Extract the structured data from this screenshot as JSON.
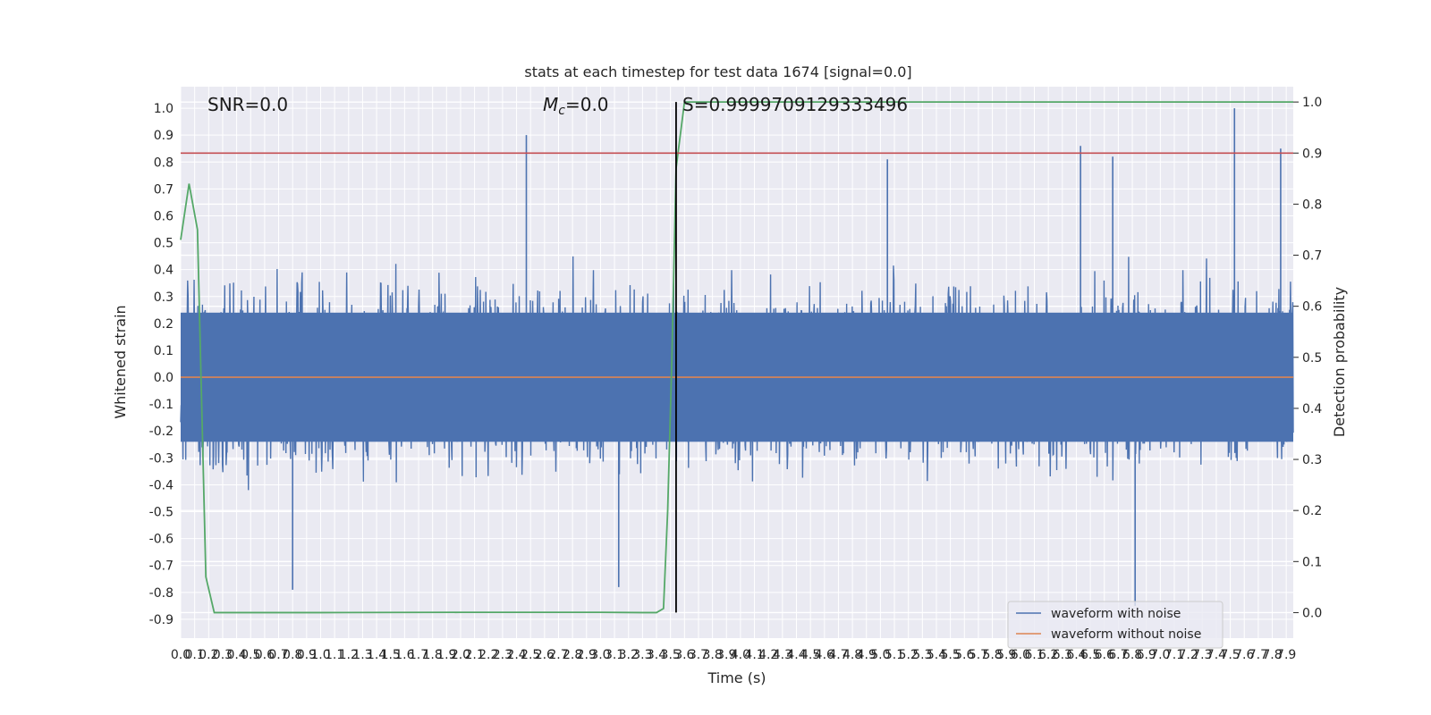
{
  "chart_data": {
    "type": "line",
    "title": "stats at each timestep for test data 1674 [signal=0.0]",
    "xlabel": "Time (s)",
    "ylabel_left": "Whitened strain",
    "ylabel_right": "Detection probability",
    "xlim": [
      0.0,
      7.95
    ],
    "ylim_left": [
      -0.97,
      1.08
    ],
    "ylim_right": [
      -0.05,
      1.03
    ],
    "x_ticks": [
      "0.0",
      "0.1",
      "0.2",
      "0.3",
      "0.4",
      "0.5",
      "0.6",
      "0.7",
      "0.8",
      "0.9",
      "1.0",
      "1.1",
      "1.2",
      "1.3",
      "1.4",
      "1.5",
      "1.6",
      "1.7",
      "1.8",
      "1.9",
      "2.0",
      "2.1",
      "2.2",
      "2.3",
      "2.4",
      "2.5",
      "2.6",
      "2.7",
      "2.8",
      "2.9",
      "3.0",
      "3.1",
      "3.2",
      "3.3",
      "3.4",
      "3.5",
      "3.6",
      "3.7",
      "3.8",
      "3.9",
      "4.0",
      "4.1",
      "4.2",
      "4.3",
      "4.4",
      "4.5",
      "4.6",
      "4.7",
      "4.8",
      "4.9",
      "5.0",
      "5.1",
      "5.2",
      "5.3",
      "5.4",
      "5.5",
      "5.6",
      "5.7",
      "5.8",
      "5.9",
      "6.0",
      "6.1",
      "6.2",
      "6.3",
      "6.4",
      "6.5",
      "6.6",
      "6.7",
      "6.8",
      "6.9",
      "7.0",
      "7.1",
      "7.2",
      "7.3",
      "7.4",
      "7.5",
      "7.6",
      "7.7",
      "7.8",
      "7.9"
    ],
    "y_ticks_left": [
      "-0.9",
      "-0.8",
      "-0.7",
      "-0.6",
      "-0.5",
      "-0.4",
      "-0.3",
      "-0.2",
      "-0.1",
      "0.0",
      "0.1",
      "0.2",
      "0.3",
      "0.4",
      "0.5",
      "0.6",
      "0.7",
      "0.8",
      "0.9",
      "1.0"
    ],
    "y_ticks_right": [
      "0.0",
      "0.1",
      "0.2",
      "0.3",
      "0.4",
      "0.5",
      "0.6",
      "0.7",
      "0.8",
      "0.9",
      "1.0"
    ],
    "grid": true,
    "legend_position": "bottom-right",
    "annotations": {
      "snr": "SNR=0.0",
      "mc_symbol": "M",
      "mc_sub": "c",
      "mc_value": "=0.0",
      "s": "S=0.9999709129333496"
    },
    "threshold_right": 0.9,
    "marker_time": 3.54,
    "waveform_with_noise_spikes": [
      {
        "x": 2.47,
        "y": 0.9
      },
      {
        "x": 5.05,
        "y": 0.81
      },
      {
        "x": 6.43,
        "y": 0.86
      },
      {
        "x": 6.66,
        "y": 0.82
      },
      {
        "x": 7.53,
        "y": 1.0
      },
      {
        "x": 7.86,
        "y": 0.85
      },
      {
        "x": 6.82,
        "y": -0.85
      },
      {
        "x": 0.8,
        "y": -0.79
      },
      {
        "x": 3.13,
        "y": -0.78
      }
    ],
    "series": [
      {
        "name": "waveform with noise",
        "color": "#4c72b0",
        "axis": "left",
        "amplitude": 0.5,
        "noise": true
      },
      {
        "name": "waveform without noise",
        "color": "#dd8452",
        "axis": "left",
        "constant": 0.0
      },
      {
        "color": "#55a868",
        "axis": "right",
        "x": [
          0.0,
          0.06,
          0.12,
          0.18,
          0.24,
          1.0,
          2.0,
          3.0,
          3.3,
          3.4,
          3.45,
          3.48,
          3.51,
          3.54,
          3.6,
          7.95
        ],
        "y": [
          0.73,
          0.84,
          0.75,
          0.07,
          0.0,
          0.0,
          0.0005,
          0.0005,
          0.0,
          0.0,
          0.008,
          0.2,
          0.5,
          0.87,
          1.0,
          1.0
        ]
      },
      {
        "color": "#c44e52",
        "axis": "right",
        "constant": 0.9
      }
    ]
  }
}
